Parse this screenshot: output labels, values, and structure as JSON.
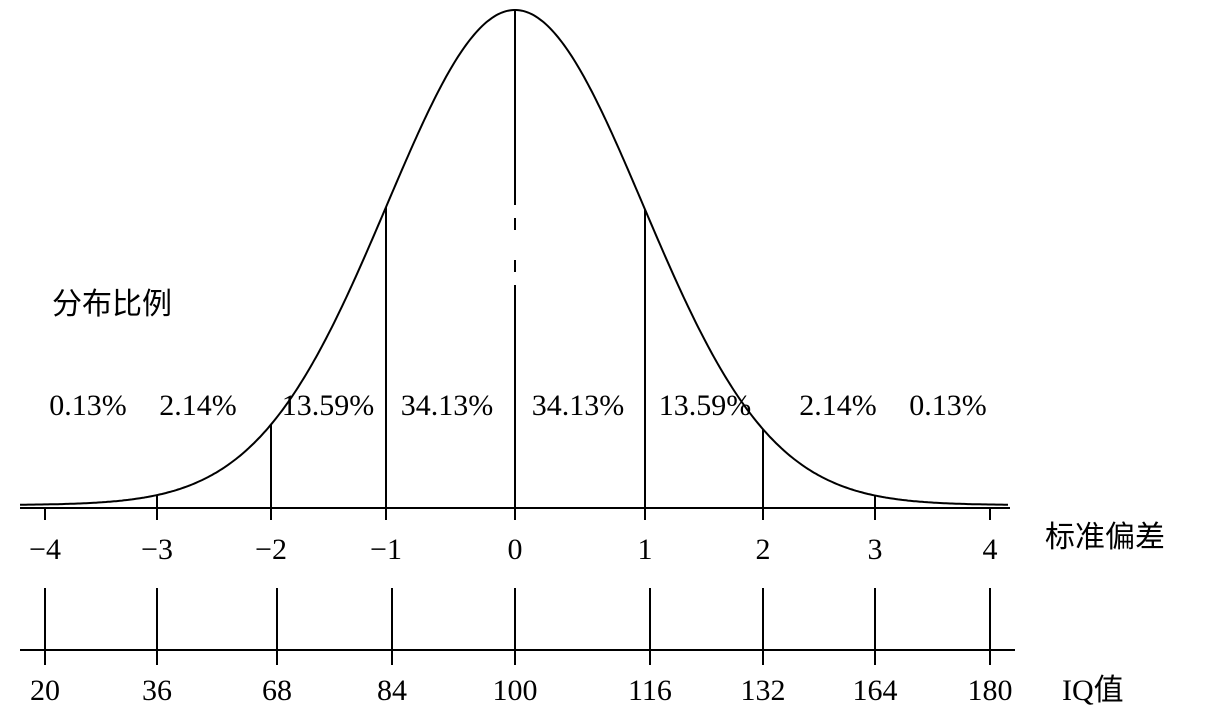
{
  "axis_labels": {
    "distribution": "分布比例",
    "sd": "标准偏差",
    "iq": "IQ值"
  },
  "percentages": [
    "0.13%",
    "2.14%",
    "13.59%",
    "34.13%",
    "34.13%",
    "13.59%",
    "2.14%",
    "0.13%"
  ],
  "sd_ticks": [
    "−4",
    "−3",
    "−2",
    "−1",
    "0",
    "1",
    "2",
    "3",
    "4"
  ],
  "iq_ticks": [
    "20",
    "36",
    "68",
    "84",
    "100",
    "116",
    "132",
    "164",
    "180"
  ]
}
